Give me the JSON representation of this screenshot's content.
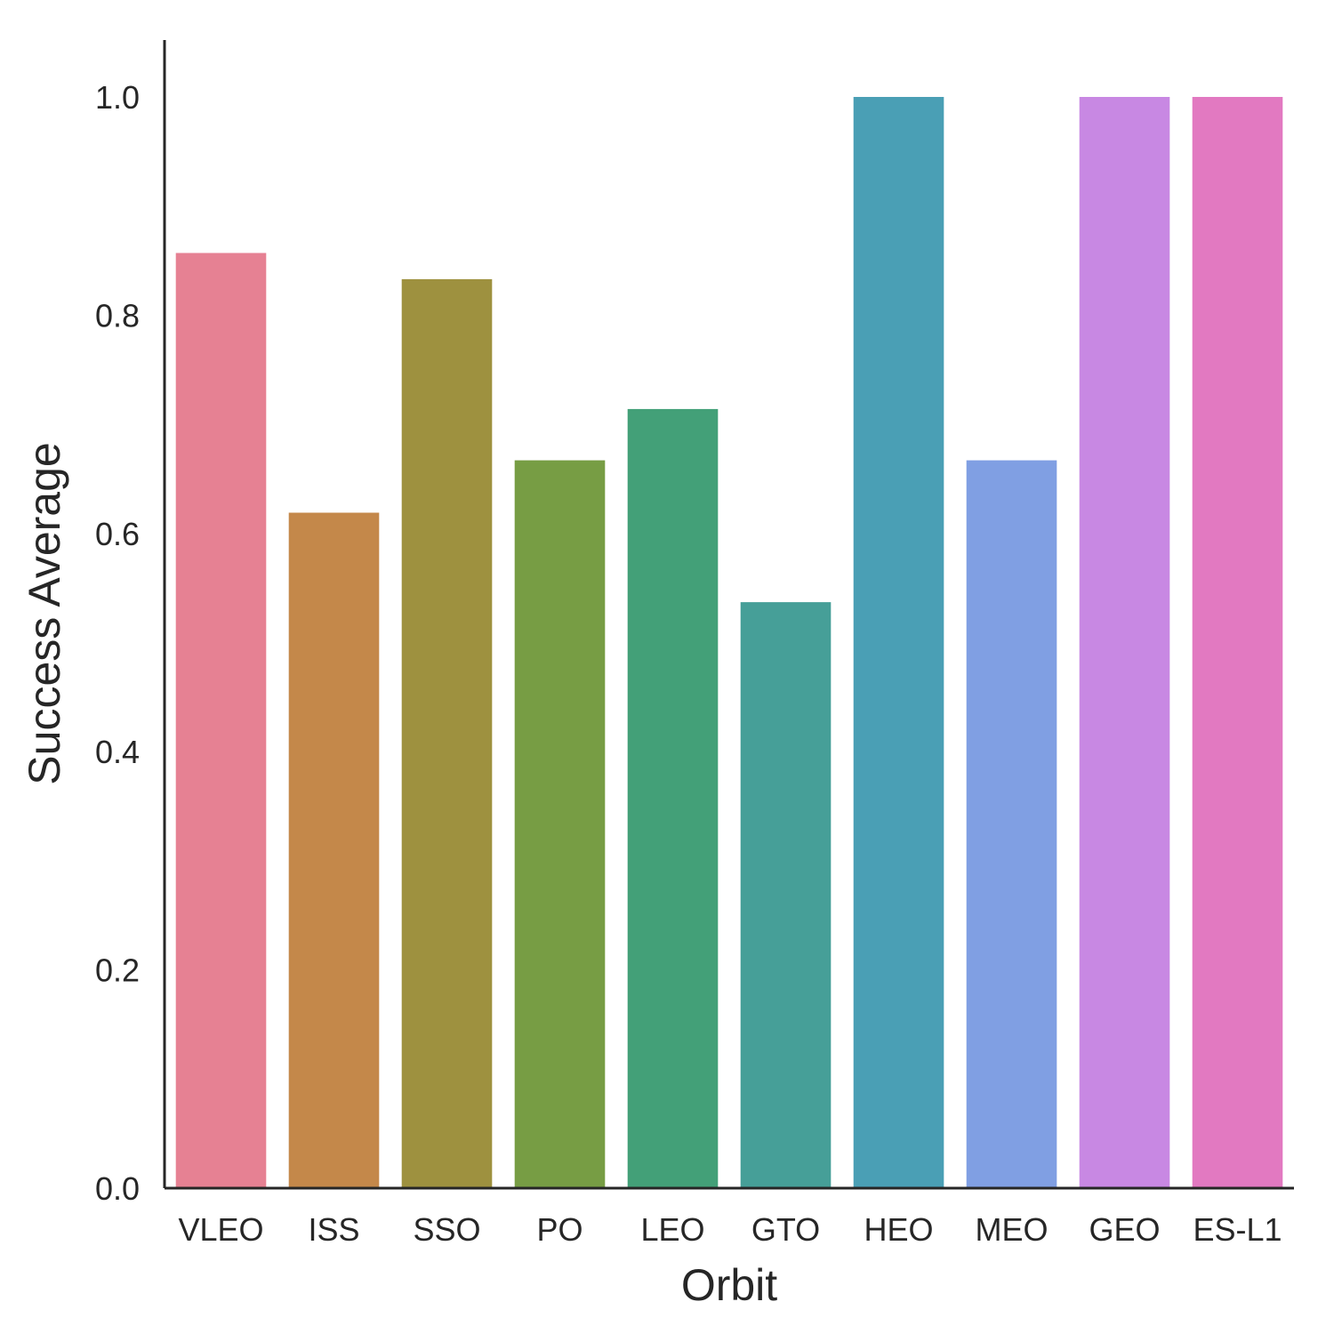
{
  "chart_data": {
    "type": "bar",
    "title": "",
    "xlabel": "Orbit",
    "ylabel": "Success Average",
    "categories": [
      "VLEO",
      "ISS",
      "SSO",
      "PO",
      "LEO",
      "GTO",
      "HEO",
      "MEO",
      "GEO",
      "ES-L1"
    ],
    "values": [
      0.857,
      0.619,
      0.833,
      0.667,
      0.714,
      0.537,
      1.0,
      0.667,
      1.0,
      1.0
    ],
    "colors": [
      "#e68193",
      "#c4884a",
      "#9e913f",
      "#779d44",
      "#43a078",
      "#469f98",
      "#4a9fb5",
      "#809fe3",
      "#c888e3",
      "#e279c1"
    ],
    "ylim": [
      0,
      1.05
    ],
    "yticks": [
      "0.0",
      "0.2",
      "0.4",
      "0.6",
      "0.8",
      "1.0"
    ],
    "grid": false,
    "legend": "none"
  }
}
